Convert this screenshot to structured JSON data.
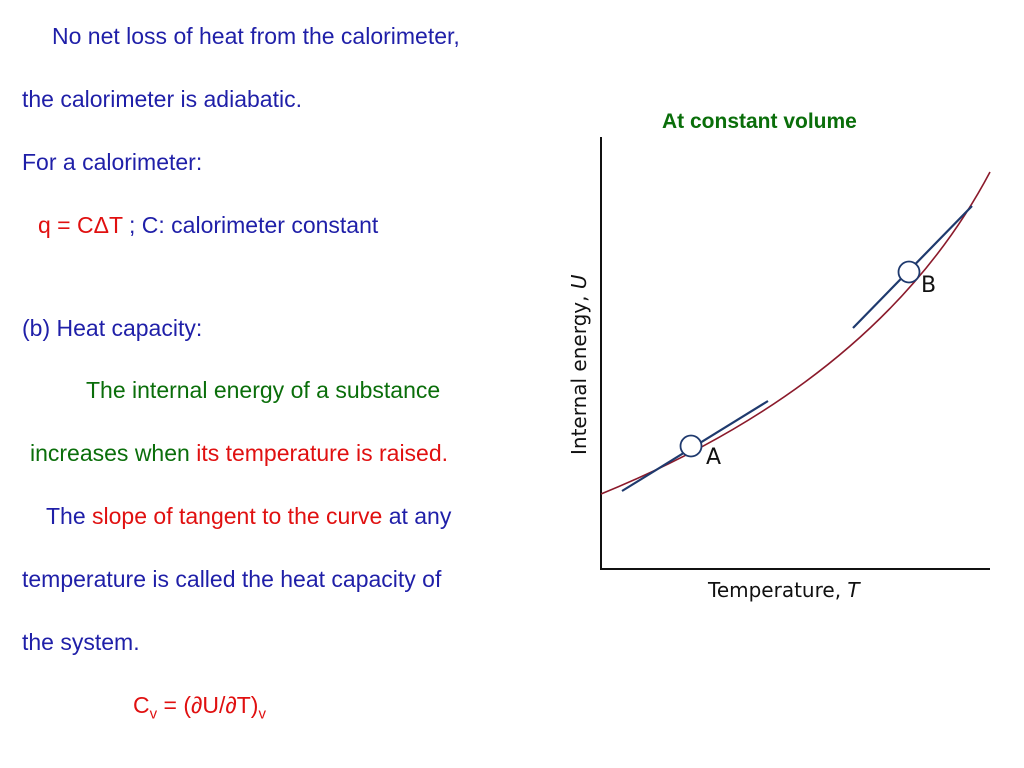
{
  "text": {
    "line1": "No net loss of heat from the calorimeter,",
    "line2": "the calorimeter is adiabatic.",
    "line3": "For a calorimeter:",
    "line4_red": "q = CΔT",
    "line4_blue": "; C: calorimeter constant",
    "line5": "(b) Heat capacity:",
    "line6": "The internal energy of a substance",
    "line7_a": "increases when",
    "line7_b": "its temperature is raised",
    "line7_c": ".",
    "line8_a": "The",
    "line8_b": "slope of tangent to the curve",
    "line8_c": "at any",
    "line9": "temperature is called the heat capacity of",
    "line10": "the system.",
    "formula_c": "C",
    "formula_v1": "v",
    "formula_mid": " = (∂U/∂T)",
    "formula_v2": "v"
  },
  "chart_data": {
    "type": "line",
    "title": "At constant volume",
    "xlabel_text": "Temperature, ",
    "xlabel_var": "T",
    "ylabel_text": "Internal energy, ",
    "ylabel_var": "U",
    "points": [
      {
        "label": "A"
      },
      {
        "label": "B"
      }
    ],
    "grid": false
  },
  "colors": {
    "blue": "#1f1fa8",
    "green": "#0a6e0a",
    "red": "#e01010",
    "curve": "#8b1a2b",
    "tangent": "#1f3a6e"
  }
}
